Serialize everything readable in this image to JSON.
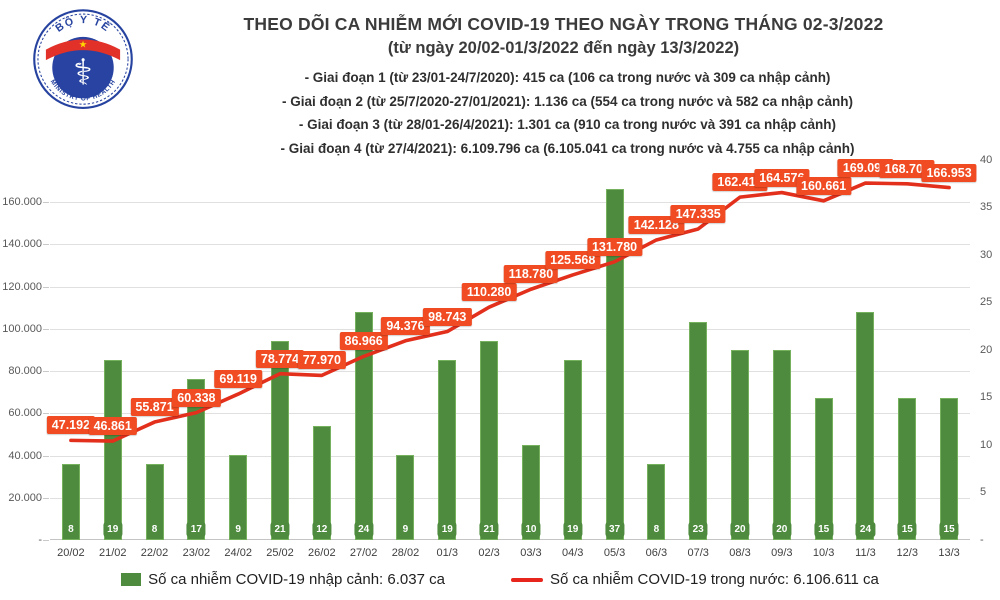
{
  "header": {
    "title": "THEO DÕI CA NHIỄM MỚI COVID-19 THEO NGÀY TRONG THÁNG 02-3/2022",
    "subtitle": "(từ ngày 20/02-01/3/2022 đến ngày 13/3/2022)",
    "periods": [
      "- Giai đoạn 1 (từ 23/01-24/7/2020): 415 ca (106 ca trong nước và 309 ca nhập cảnh)",
      "- Giai đoạn 2 (từ 25/7/2020-27/01/2021): 1.136 ca (554 ca trong nước và 582 ca nhập cảnh)",
      "- Giai đoạn 3 (từ 28/01-26/4/2021): 1.301 ca (910 ca trong nước và 391 ca nhập cảnh)",
      "- Giai đoạn 4 (từ 27/4/2021): 6.109.796 ca (6.105.041 ca trong nước và 4.755 ca nhập cảnh)"
    ]
  },
  "logo": {
    "top_text": "BỘ Y TẾ",
    "bottom_text": "MINISTRY OF HEALTH",
    "star": "★",
    "caduceus": "⚕"
  },
  "chart_data": {
    "type": "bar+line combo",
    "categories": [
      "20/02",
      "21/02",
      "22/02",
      "23/02",
      "24/02",
      "25/02",
      "26/02",
      "27/02",
      "28/02",
      "01/3",
      "02/3",
      "03/3",
      "04/3",
      "05/3",
      "06/3",
      "07/3",
      "08/3",
      "09/3",
      "10/3",
      "11/3",
      "12/3",
      "13/3"
    ],
    "series": [
      {
        "name": "Số ca nhiễm COVID-19 nhập cảnh",
        "type": "bar",
        "axis": "right",
        "color": "#4E8B3F",
        "values": [
          8,
          19,
          8,
          17,
          9,
          21,
          12,
          24,
          9,
          19,
          21,
          10,
          19,
          37,
          8,
          23,
          20,
          20,
          15,
          24,
          15,
          15
        ]
      },
      {
        "name": "Số ca nhiễm COVID-19 trong nước",
        "type": "line",
        "axis": "left",
        "color": "#E2301C",
        "label_bg": "#F04B22",
        "values": [
          47192,
          46861,
          55871,
          60338,
          69119,
          78774,
          77970,
          86966,
          94376,
          98743,
          110280,
          118780,
          125568,
          131780,
          142128,
          147335,
          162415,
          164576,
          160661,
          169090,
          168704,
          166953
        ],
        "labels": [
          "47.192",
          "46.861",
          "55.871",
          "60.338",
          "69.119",
          "78.774",
          "77.970",
          "86.966",
          "94.376",
          "98.743",
          "110.280",
          "118.780",
          "125.568",
          "131.780",
          "142.128",
          "147.335",
          "162.415",
          "164.576",
          "160.661",
          "169.090",
          "168.704",
          "166.953"
        ]
      }
    ],
    "left_axis": {
      "max": 180000,
      "ticks": [
        {
          "v": 0,
          "label": "-"
        },
        {
          "v": 20000,
          "label": "20.000"
        },
        {
          "v": 40000,
          "label": "40.000"
        },
        {
          "v": 60000,
          "label": "60.000"
        },
        {
          "v": 80000,
          "label": "80.000"
        },
        {
          "v": 100000,
          "label": "100.000"
        },
        {
          "v": 120000,
          "label": "120.000"
        },
        {
          "v": 140000,
          "label": "140.000"
        },
        {
          "v": 160000,
          "label": "160.000"
        }
      ]
    },
    "right_axis": {
      "max": 40,
      "ticks": [
        {
          "v": 0,
          "label": "-"
        },
        {
          "v": 5,
          "label": "5"
        },
        {
          "v": 10,
          "label": "10"
        },
        {
          "v": 15,
          "label": "15"
        },
        {
          "v": 20,
          "label": "20"
        },
        {
          "v": 25,
          "label": "25"
        },
        {
          "v": 30,
          "label": "30"
        },
        {
          "v": 35,
          "label": "35"
        },
        {
          "v": 40,
          "label": "40"
        }
      ]
    },
    "grid": true,
    "legend": [
      {
        "type": "bar",
        "color": "#4E8B3F",
        "label": "Số ca nhiễm COVID-19 nhập cảnh: 6.037 ca"
      },
      {
        "type": "line",
        "color": "#E8251D",
        "label": "Số ca nhiễm COVID-19 trong nước: 6.106.611 ca"
      }
    ]
  }
}
